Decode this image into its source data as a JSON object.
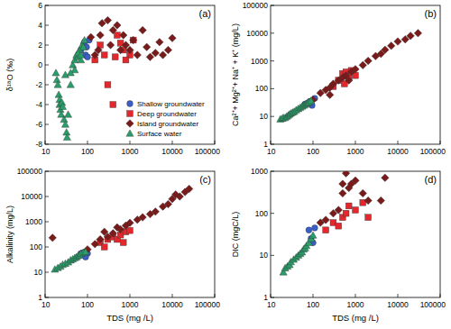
{
  "chart_data": [
    {
      "type": "scatter",
      "title": "(a)",
      "ylabel": "δ¹⁸O (‰)",
      "log": "x",
      "legend": "lower right",
      "xlim": [
        10,
        100000
      ],
      "xticks": [
        10,
        100,
        1000,
        10000,
        100000
      ],
      "ylim": [
        -8,
        6
      ],
      "yticks": [
        -8,
        -6,
        -4,
        -2,
        0,
        2,
        4,
        6
      ],
      "series": [
        {
          "name": "Shallow groundwater",
          "color": "#3b5fc8",
          "marker": "circle",
          "x": [
            70,
            80,
            85,
            90,
            100,
            110,
            95
          ],
          "values": [
            1.5,
            2,
            2.3,
            1,
            0.8,
            2.5,
            1.8
          ]
        },
        {
          "name": "Deep groundwater",
          "color": "#e5262b",
          "marker": "square",
          "x": [
            150,
            200,
            250,
            300,
            400,
            500,
            600,
            700,
            1000,
            1200,
            800,
            450
          ],
          "values": [
            0.5,
            2,
            1,
            -2,
            -4,
            3,
            2.2,
            1.5,
            1,
            2.5,
            0.5,
            0.8
          ]
        },
        {
          "name": "Island groundwater",
          "color": "#7a1b1b",
          "marker": "diamond",
          "x": [
            150,
            200,
            220,
            300,
            350,
            400,
            500,
            600,
            700,
            800,
            1000,
            1200,
            1500,
            2000,
            2500,
            3000,
            4000,
            5000,
            6000,
            8000,
            10000,
            120,
            180
          ],
          "values": [
            1,
            3,
            4.2,
            4.5,
            2,
            3.5,
            4,
            1.5,
            3,
            2,
            1.5,
            2.5,
            1,
            3.5,
            1.8,
            0.8,
            1.2,
            2.3,
            1,
            1.5,
            2.7,
            2.8,
            1.5
          ]
        },
        {
          "name": "Surface water",
          "color": "#2a9e6a",
          "marker": "triangle",
          "x": [
            18,
            19,
            20,
            21,
            22,
            22,
            23,
            24,
            25,
            26,
            28,
            30,
            32,
            33,
            35,
            30,
            40,
            45,
            50,
            55,
            60,
            65,
            70,
            75,
            80,
            85,
            60,
            70,
            50,
            40
          ],
          "values": [
            -0.8,
            -1.5,
            -2,
            -3,
            -3.5,
            -4,
            -4.5,
            -5,
            -3.8,
            -4.2,
            -5.5,
            -6,
            -6.8,
            -7.3,
            -5,
            -1,
            -2,
            0,
            0.5,
            1,
            0.8,
            1.5,
            0.5,
            2,
            1.8,
            2.5,
            1.2,
            1,
            -0.5,
            -0.8
          ]
        }
      ]
    },
    {
      "type": "scatter",
      "title": "(b)",
      "ylabel": "Ca²⁺+ Mg²⁺+ Na⁺ + K⁺ (mg/L)",
      "log": true,
      "xlim": [
        10,
        100000
      ],
      "xticks": [
        10,
        100,
        1000,
        10000,
        100000
      ],
      "ylim": [
        1,
        100000
      ],
      "yticks": [
        1,
        10,
        100,
        1000,
        10000,
        100000
      ],
      "series": [
        {
          "color": "#3b5fc8",
          "marker": "circle",
          "x": [
            65,
            75,
            85,
            95,
            110
          ],
          "values": [
            28,
            30,
            35,
            25,
            45
          ]
        },
        {
          "color": "#e5262b",
          "marker": "square",
          "x": [
            300,
            400,
            500,
            600,
            700,
            800,
            1000,
            550
          ],
          "values": [
            120,
            200,
            350,
            400,
            250,
            450,
            300,
            150
          ]
        },
        {
          "color": "#7a1b1b",
          "marker": "diamond",
          "x": [
            100,
            150,
            200,
            250,
            300,
            400,
            500,
            600,
            800,
            1000,
            1500,
            2000,
            3000,
            4000,
            5000,
            7000,
            10000,
            15000,
            20000,
            30000,
            250,
            700
          ],
          "values": [
            40,
            70,
            90,
            110,
            150,
            200,
            250,
            300,
            400,
            500,
            700,
            1000,
            1500,
            1800,
            2500,
            3500,
            5000,
            6000,
            8000,
            10000,
            60,
            200
          ]
        },
        {
          "color": "#2a9e6a",
          "marker": "triangle",
          "x": [
            17,
            19,
            20,
            22,
            24,
            26,
            28,
            30,
            33,
            36,
            40,
            45,
            50,
            55,
            60,
            65,
            70,
            75,
            80,
            90
          ],
          "values": [
            8,
            8.5,
            9,
            9,
            10,
            11,
            12,
            13,
            14,
            15,
            17,
            19,
            21,
            23,
            25,
            27,
            29,
            31,
            33,
            37
          ]
        }
      ]
    },
    {
      "type": "scatter",
      "title": "(c)",
      "xlabel": "TDS (mg /L)",
      "ylabel": "Alkalinity (mg/L)",
      "log": true,
      "xlim": [
        10,
        100000
      ],
      "xticks": [
        10,
        100,
        1000,
        10000,
        100000
      ],
      "ylim": [
        1,
        100000
      ],
      "yticks": [
        1,
        10,
        100,
        1000,
        10000,
        100000
      ],
      "series": [
        {
          "color": "#3b5fc8",
          "marker": "circle",
          "x": [
            70,
            80,
            100,
            90
          ],
          "values": [
            55,
            60,
            55,
            40
          ]
        },
        {
          "color": "#e5262b",
          "marker": "square",
          "x": [
            200,
            250,
            300,
            400,
            500,
            600,
            800,
            1000,
            700
          ],
          "values": [
            150,
            100,
            200,
            250,
            200,
            300,
            400,
            450,
            150
          ]
        },
        {
          "color": "#7a1b1b",
          "marker": "diamond",
          "x": [
            15,
            100,
            150,
            200,
            300,
            400,
            500,
            600,
            800,
            1000,
            1500,
            2000,
            3000,
            4000,
            6000,
            8000,
            10000,
            15000,
            20000,
            25000,
            12000,
            250
          ],
          "values": [
            230,
            80,
            130,
            200,
            250,
            350,
            600,
            500,
            700,
            900,
            1200,
            1500,
            2000,
            2500,
            4000,
            5000,
            8000,
            10000,
            15000,
            20000,
            12000,
            400
          ]
        },
        {
          "color": "#2a9e6a",
          "marker": "triangle",
          "x": [
            17,
            20,
            23,
            26,
            30,
            35,
            40,
            45,
            50,
            55,
            60,
            65,
            70,
            80,
            90
          ],
          "values": [
            13,
            15,
            17,
            20,
            22,
            25,
            30,
            33,
            37,
            40,
            45,
            48,
            55,
            60,
            65
          ]
        }
      ]
    },
    {
      "type": "scatter",
      "title": "(d)",
      "xlabel": "TDS (mg /L)",
      "ylabel": "DIC (mgC/L)",
      "log": true,
      "xlim": [
        10,
        100000
      ],
      "xticks": [
        10,
        100,
        1000,
        10000,
        100000
      ],
      "ylim": [
        1,
        1000
      ],
      "yticks": [
        1,
        10,
        100,
        1000
      ],
      "series": [
        {
          "color": "#3b5fc8",
          "marker": "circle",
          "x": [
            80,
            90,
            110,
            100
          ],
          "values": [
            40,
            25,
            45,
            20
          ]
        },
        {
          "color": "#e5262b",
          "marker": "square",
          "x": [
            200,
            300,
            400,
            500,
            600,
            700,
            1000,
            1500,
            2000
          ],
          "values": [
            40,
            60,
            50,
            80,
            100,
            150,
            120,
            180,
            80
          ]
        },
        {
          "color": "#7a1b1b",
          "marker": "diamond",
          "x": [
            150,
            200,
            300,
            400,
            500,
            600,
            700,
            800,
            1000,
            1500,
            2000,
            5000,
            4000,
            500
          ],
          "values": [
            60,
            70,
            100,
            120,
            300,
            900,
            400,
            500,
            600,
            300,
            200,
            700,
            200,
            500
          ]
        },
        {
          "color": "#2a9e6a",
          "marker": "triangle",
          "x": [
            20,
            22,
            25,
            28,
            30,
            35,
            40,
            45,
            50,
            55,
            60,
            65,
            70,
            80,
            90,
            100
          ],
          "values": [
            4,
            5,
            5.5,
            6,
            7,
            8,
            9,
            10,
            11,
            12,
            14,
            15,
            17,
            20,
            25,
            30
          ]
        }
      ]
    }
  ]
}
